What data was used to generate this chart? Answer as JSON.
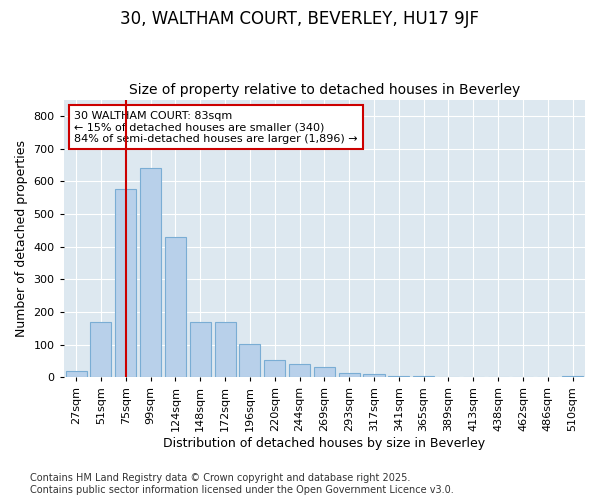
{
  "title1": "30, WALTHAM COURT, BEVERLEY, HU17 9JF",
  "title2": "Size of property relative to detached houses in Beverley",
  "xlabel": "Distribution of detached houses by size in Beverley",
  "ylabel": "Number of detached properties",
  "categories": [
    "27sqm",
    "51sqm",
    "75sqm",
    "99sqm",
    "124sqm",
    "148sqm",
    "172sqm",
    "196sqm",
    "220sqm",
    "244sqm",
    "269sqm",
    "293sqm",
    "317sqm",
    "341sqm",
    "365sqm",
    "389sqm",
    "413sqm",
    "438sqm",
    "462sqm",
    "486sqm",
    "510sqm"
  ],
  "values": [
    20,
    170,
    575,
    640,
    430,
    170,
    170,
    103,
    52,
    40,
    33,
    12,
    10,
    3,
    3,
    2,
    2,
    1,
    1,
    1,
    5
  ],
  "bar_color": "#b8d0ea",
  "bar_edge_color": "#7aadd4",
  "vline_x": 2.0,
  "vline_color": "#cc0000",
  "annotation_line1": "30 WALTHAM COURT: 83sqm",
  "annotation_line2": "← 15% of detached houses are smaller (340)",
  "annotation_line3": "84% of semi-detached houses are larger (1,896) →",
  "annotation_box_facecolor": "#ffffff",
  "annotation_box_edgecolor": "#cc0000",
  "ylim": [
    0,
    850
  ],
  "yticks": [
    0,
    100,
    200,
    300,
    400,
    500,
    600,
    700,
    800
  ],
  "background_color": "#dde8f0",
  "grid_color": "#ffffff",
  "footer1": "Contains HM Land Registry data © Crown copyright and database right 2025.",
  "footer2": "Contains public sector information licensed under the Open Government Licence v3.0.",
  "title1_fontsize": 12,
  "title2_fontsize": 10,
  "xlabel_fontsize": 9,
  "ylabel_fontsize": 9,
  "tick_fontsize": 8,
  "annot_fontsize": 8,
  "footer_fontsize": 7
}
